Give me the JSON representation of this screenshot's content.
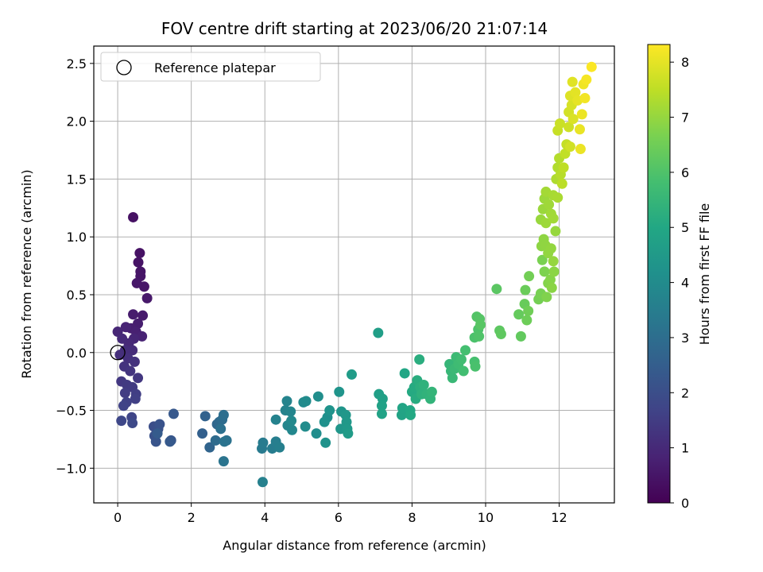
{
  "chart_data": {
    "type": "scatter",
    "title": "FOV centre drift starting at 2023/06/20 21:07:14",
    "xlabel": "Angular distance from reference (arcmin)",
    "ylabel": "Rotation from reference (arcmin)",
    "colorbar_label": "Hours from first FF file",
    "xlim": [
      -0.65,
      13.5
    ],
    "ylim": [
      -1.3,
      2.65
    ],
    "clim": [
      0,
      8.32
    ],
    "x_ticks": [
      0,
      2,
      4,
      6,
      8,
      10,
      12
    ],
    "y_ticks": [
      -1.0,
      -0.5,
      0.0,
      0.5,
      1.0,
      1.5,
      2.0,
      2.5
    ],
    "colorbar_ticks": [
      0,
      1,
      2,
      3,
      4,
      5,
      6,
      7,
      8
    ],
    "grid": true,
    "colormap": "viridis",
    "legend": {
      "placement": "upper-left",
      "entries": [
        "Reference platepar"
      ]
    },
    "reference_point": {
      "x": 0.0,
      "y": 0.0
    },
    "points": [
      [
        0.42,
        1.17,
        0.4
      ],
      [
        0.6,
        0.86,
        0.42
      ],
      [
        0.56,
        0.78,
        0.45
      ],
      [
        0.62,
        0.7,
        0.48
      ],
      [
        0.62,
        0.66,
        0.5
      ],
      [
        0.72,
        0.57,
        0.52
      ],
      [
        0.52,
        0.6,
        0.55
      ],
      [
        0.8,
        0.47,
        0.58
      ],
      [
        0.68,
        0.32,
        0.62
      ],
      [
        0.42,
        0.33,
        0.66
      ],
      [
        0.55,
        0.25,
        0.7
      ],
      [
        0.36,
        0.21,
        0.74
      ],
      [
        0.5,
        0.18,
        0.78
      ],
      [
        0.66,
        0.14,
        0.82
      ],
      [
        0.22,
        0.22,
        0.86
      ],
      [
        0.44,
        0.12,
        0.9
      ],
      [
        0.0,
        0.18,
        0.94
      ],
      [
        0.3,
        0.08,
        0.98
      ],
      [
        0.12,
        0.12,
        1.02
      ],
      [
        0.4,
        0.02,
        1.06
      ],
      [
        0.2,
        0.02,
        1.1
      ],
      [
        0.06,
        -0.02,
        1.14
      ],
      [
        0.28,
        -0.05,
        1.18
      ],
      [
        0.46,
        -0.08,
        1.22
      ],
      [
        0.18,
        -0.12,
        1.26
      ],
      [
        0.34,
        -0.16,
        1.3
      ],
      [
        0.55,
        -0.22,
        1.34
      ],
      [
        0.1,
        -0.25,
        1.38
      ],
      [
        0.25,
        -0.28,
        1.42
      ],
      [
        0.4,
        -0.3,
        1.46
      ],
      [
        0.2,
        -0.35,
        1.5
      ],
      [
        0.5,
        -0.36,
        1.54
      ],
      [
        0.48,
        -0.4,
        1.58
      ],
      [
        0.24,
        -0.43,
        1.62
      ],
      [
        0.16,
        -0.46,
        1.66
      ],
      [
        0.38,
        -0.56,
        1.72
      ],
      [
        0.1,
        -0.59,
        1.78
      ],
      [
        0.4,
        -0.61,
        1.84
      ],
      [
        0.98,
        -0.64,
        2.0
      ],
      [
        1.1,
        -0.66,
        2.05
      ],
      [
        1.0,
        -0.72,
        2.1
      ],
      [
        1.14,
        -0.62,
        2.15
      ],
      [
        1.04,
        -0.77,
        2.2
      ],
      [
        1.45,
        -0.76,
        2.25
      ],
      [
        1.52,
        -0.53,
        2.3
      ],
      [
        1.42,
        -0.77,
        2.35
      ],
      [
        1.08,
        -0.7,
        2.4
      ],
      [
        2.3,
        -0.7,
        2.55
      ],
      [
        2.38,
        -0.55,
        2.62
      ],
      [
        2.5,
        -0.82,
        2.7
      ],
      [
        2.7,
        -0.62,
        2.78
      ],
      [
        2.76,
        -0.6,
        2.84
      ],
      [
        2.66,
        -0.76,
        2.9
      ],
      [
        2.84,
        -0.58,
        2.96
      ],
      [
        2.88,
        -0.54,
        3.02
      ],
      [
        2.8,
        -0.66,
        3.08
      ],
      [
        2.96,
        -0.76,
        3.12
      ],
      [
        2.9,
        -0.77,
        3.16
      ],
      [
        2.88,
        -0.94,
        3.2
      ],
      [
        3.92,
        -0.83,
        3.4
      ],
      [
        3.95,
        -0.78,
        3.44
      ],
      [
        4.2,
        -0.83,
        3.48
      ],
      [
        4.3,
        -0.77,
        3.52
      ],
      [
        4.4,
        -0.82,
        3.56
      ],
      [
        3.94,
        -1.12,
        3.6
      ],
      [
        4.3,
        -0.58,
        3.66
      ],
      [
        4.56,
        -0.5,
        3.7
      ],
      [
        4.6,
        -0.42,
        3.74
      ],
      [
        4.7,
        -0.51,
        3.78
      ],
      [
        4.62,
        -0.63,
        3.82
      ],
      [
        4.74,
        -0.67,
        3.86
      ],
      [
        4.72,
        -0.59,
        3.9
      ],
      [
        5.05,
        -0.43,
        3.94
      ],
      [
        5.12,
        -0.42,
        3.98
      ],
      [
        5.1,
        -0.64,
        4.02
      ],
      [
        5.4,
        -0.7,
        4.06
      ],
      [
        5.45,
        -0.38,
        4.1
      ],
      [
        5.7,
        -0.56,
        4.14
      ],
      [
        5.62,
        -0.6,
        4.18
      ],
      [
        5.65,
        -0.78,
        4.22
      ],
      [
        5.76,
        -0.5,
        4.26
      ],
      [
        6.02,
        -0.34,
        4.3
      ],
      [
        6.08,
        -0.51,
        4.34
      ],
      [
        6.06,
        -0.66,
        4.38
      ],
      [
        6.2,
        -0.54,
        4.42
      ],
      [
        6.22,
        -0.6,
        4.46
      ],
      [
        6.24,
        -0.66,
        4.5
      ],
      [
        6.26,
        -0.7,
        4.54
      ],
      [
        6.36,
        -0.19,
        4.58
      ],
      [
        7.08,
        0.17,
        4.66
      ],
      [
        7.1,
        -0.36,
        4.7
      ],
      [
        7.2,
        -0.4,
        4.74
      ],
      [
        7.18,
        -0.46,
        4.78
      ],
      [
        7.18,
        -0.53,
        4.82
      ],
      [
        7.72,
        -0.54,
        4.86
      ],
      [
        7.74,
        -0.48,
        4.9
      ],
      [
        7.8,
        -0.18,
        4.94
      ],
      [
        7.95,
        -0.5,
        4.98
      ],
      [
        7.96,
        -0.54,
        5.02
      ],
      [
        8.0,
        -0.34,
        5.06
      ],
      [
        8.06,
        -0.3,
        5.1
      ],
      [
        8.1,
        -0.4,
        5.14
      ],
      [
        8.14,
        -0.24,
        5.18
      ],
      [
        8.2,
        -0.06,
        5.22
      ],
      [
        8.22,
        -0.3,
        5.26
      ],
      [
        8.26,
        -0.36,
        5.3
      ],
      [
        8.32,
        -0.28,
        5.34
      ],
      [
        8.4,
        -0.36,
        5.38
      ],
      [
        8.5,
        -0.4,
        5.42
      ],
      [
        8.54,
        -0.34,
        5.46
      ],
      [
        9.02,
        -0.1,
        5.5
      ],
      [
        9.06,
        -0.16,
        5.54
      ],
      [
        9.1,
        -0.22,
        5.58
      ],
      [
        9.16,
        -0.14,
        5.62
      ],
      [
        9.2,
        -0.04,
        5.66
      ],
      [
        9.26,
        -0.1,
        5.7
      ],
      [
        9.34,
        -0.06,
        5.74
      ],
      [
        9.4,
        -0.16,
        5.78
      ],
      [
        9.45,
        0.02,
        5.82
      ],
      [
        9.7,
        -0.08,
        5.86
      ],
      [
        9.72,
        -0.12,
        5.9
      ],
      [
        9.7,
        0.13,
        5.94
      ],
      [
        9.8,
        0.2,
        5.98
      ],
      [
        9.82,
        0.14,
        6.02
      ],
      [
        9.76,
        0.31,
        6.06
      ],
      [
        9.84,
        0.29,
        6.1
      ],
      [
        9.86,
        0.24,
        6.14
      ],
      [
        10.3,
        0.55,
        6.18
      ],
      [
        10.38,
        0.19,
        6.22
      ],
      [
        10.42,
        0.16,
        6.26
      ],
      [
        10.96,
        0.14,
        6.3
      ],
      [
        10.9,
        0.33,
        6.34
      ],
      [
        11.06,
        0.42,
        6.38
      ],
      [
        11.08,
        0.54,
        6.42
      ],
      [
        11.12,
        0.28,
        6.46
      ],
      [
        11.16,
        0.36,
        6.5
      ],
      [
        11.18,
        0.66,
        6.54
      ],
      [
        11.44,
        0.46,
        6.58
      ],
      [
        11.5,
        0.51,
        6.62
      ],
      [
        11.54,
        0.8,
        6.66
      ],
      [
        11.6,
        0.7,
        6.7
      ],
      [
        11.66,
        0.48,
        6.74
      ],
      [
        11.7,
        0.6,
        6.78
      ],
      [
        11.76,
        0.63,
        6.82
      ],
      [
        11.8,
        0.56,
        6.86
      ],
      [
        11.86,
        0.7,
        6.88
      ],
      [
        11.52,
        0.92,
        6.9
      ],
      [
        11.58,
        0.98,
        6.92
      ],
      [
        11.62,
        0.93,
        6.94
      ],
      [
        11.7,
        0.86,
        6.96
      ],
      [
        11.78,
        0.9,
        6.98
      ],
      [
        11.84,
        0.79,
        7.0
      ],
      [
        11.9,
        1.05,
        7.02
      ],
      [
        11.5,
        1.15,
        7.04
      ],
      [
        11.56,
        1.24,
        7.06
      ],
      [
        11.6,
        1.33,
        7.08
      ],
      [
        11.64,
        1.12,
        7.1
      ],
      [
        11.72,
        1.28,
        7.12
      ],
      [
        11.78,
        1.2,
        7.14
      ],
      [
        11.84,
        1.16,
        7.16
      ],
      [
        11.64,
        1.39,
        7.18
      ],
      [
        11.84,
        1.36,
        7.22
      ],
      [
        11.96,
        1.34,
        7.26
      ],
      [
        11.92,
        1.5,
        7.3
      ],
      [
        11.96,
        1.6,
        7.34
      ],
      [
        12.0,
        1.68,
        7.38
      ],
      [
        12.04,
        1.54,
        7.42
      ],
      [
        12.08,
        1.46,
        7.46
      ],
      [
        12.12,
        1.6,
        7.5
      ],
      [
        12.16,
        1.72,
        7.54
      ],
      [
        12.2,
        1.8,
        7.58
      ],
      [
        11.96,
        1.92,
        7.62
      ],
      [
        12.02,
        1.98,
        7.66
      ],
      [
        12.26,
        1.95,
        7.7
      ],
      [
        12.3,
        1.78,
        7.74
      ],
      [
        12.26,
        2.08,
        7.78
      ],
      [
        12.34,
        2.14,
        7.82
      ],
      [
        12.38,
        2.02,
        7.86
      ],
      [
        12.3,
        2.22,
        7.9
      ],
      [
        12.36,
        2.34,
        7.94
      ],
      [
        12.44,
        2.25,
        7.98
      ],
      [
        12.5,
        2.18,
        8.02
      ],
      [
        12.56,
        1.93,
        8.06
      ],
      [
        12.58,
        1.76,
        8.08
      ],
      [
        12.62,
        2.06,
        8.1
      ],
      [
        12.66,
        2.32,
        8.14
      ],
      [
        12.7,
        2.2,
        8.18
      ],
      [
        12.74,
        2.36,
        8.22
      ],
      [
        12.88,
        2.47,
        8.3
      ]
    ]
  }
}
